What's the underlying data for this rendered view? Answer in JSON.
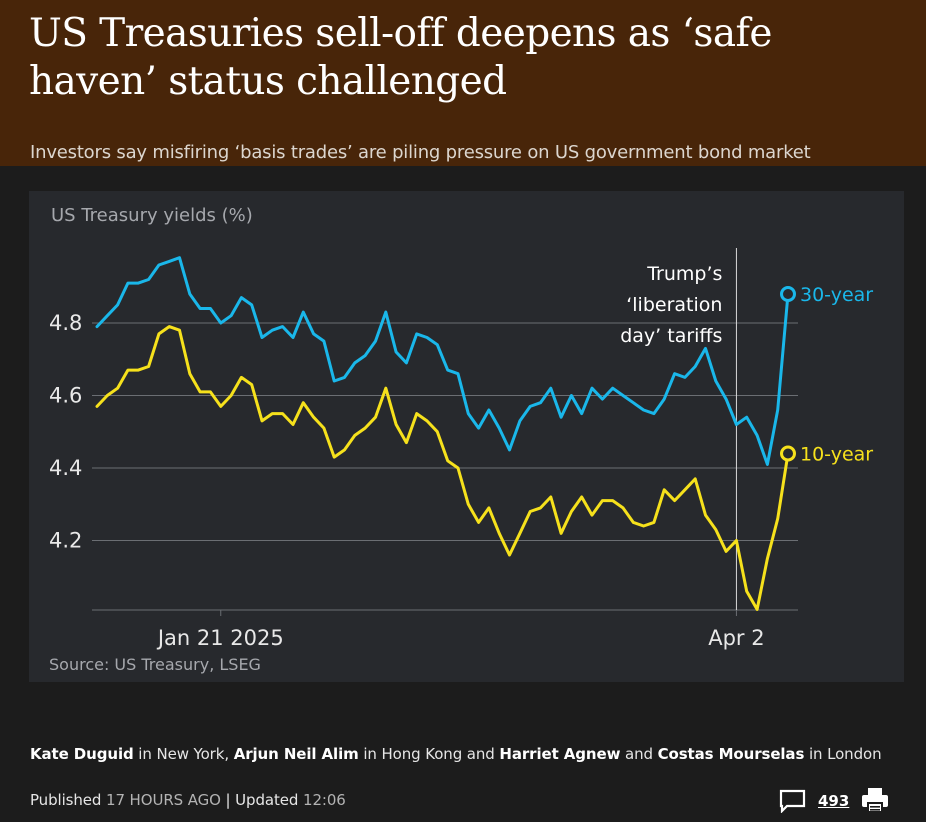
{
  "headline": "US Treasuries sell-off deepens as ‘safe haven’ status challenged",
  "standfirst": "Investors say misfiring ‘basis trades’ are piling pressure on US government bond market",
  "byline": {
    "authors": [
      {
        "name": "Kate Duguid",
        "suffix": " in New York, "
      },
      {
        "name": "Arjun Neil Alim",
        "suffix": " in Hong Kong and "
      },
      {
        "name": "Harriet Agnew",
        "suffix": " and "
      },
      {
        "name": "Costas Mourselas",
        "suffix": " in London"
      }
    ]
  },
  "meta": {
    "published_label": "Published",
    "published_value": "17 HOURS AGO",
    "separator": " | ",
    "updated_label": "Updated",
    "updated_value": "12:06",
    "comment_count": "493",
    "comment_icon": "speech-bubble-icon",
    "print_icon": "printer-icon"
  },
  "colors": {
    "header_bg": "#482509",
    "page_bg": "#1c1c1c",
    "chart_bg": "#27292d",
    "series_30": "#1ab7ea",
    "series_10": "#f6e11c",
    "gridline": "#6b6e73"
  },
  "chart_data": {
    "type": "line",
    "title": "US Treasury yields (%)",
    "source": "Source: US Treasury, LSEG",
    "x_ticks": [
      "Jan 21 2025",
      "Apr 2"
    ],
    "y_ticks": [
      4.2,
      4.4,
      4.6,
      4.8
    ],
    "ylim": [
      4.0,
      5.0
    ],
    "grid": true,
    "annotation": {
      "text": [
        "Trump’s",
        "‘liberation",
        "day’ tariffs"
      ],
      "at": "Apr 2"
    },
    "x": [
      "Jan 2",
      "Jan 3",
      "Jan 6",
      "Jan 7",
      "Jan 8",
      "Jan 9",
      "Jan 10",
      "Jan 13",
      "Jan 14",
      "Jan 15",
      "Jan 16",
      "Jan 17",
      "Jan 21",
      "Jan 22",
      "Jan 23",
      "Jan 24",
      "Jan 27",
      "Jan 28",
      "Jan 29",
      "Jan 30",
      "Jan 31",
      "Feb 3",
      "Feb 4",
      "Feb 5",
      "Feb 6",
      "Feb 7",
      "Feb 10",
      "Feb 11",
      "Feb 12",
      "Feb 13",
      "Feb 14",
      "Feb 18",
      "Feb 19",
      "Feb 20",
      "Feb 21",
      "Feb 24",
      "Feb 25",
      "Feb 26",
      "Feb 27",
      "Feb 28",
      "Mar 3",
      "Mar 4",
      "Mar 5",
      "Mar 6",
      "Mar 7",
      "Mar 10",
      "Mar 11",
      "Mar 12",
      "Mar 13",
      "Mar 14",
      "Mar 17",
      "Mar 18",
      "Mar 19",
      "Mar 20",
      "Mar 21",
      "Mar 24",
      "Mar 25",
      "Mar 26",
      "Mar 27",
      "Mar 28",
      "Mar 31",
      "Apr 1",
      "Apr 2",
      "Apr 3",
      "Apr 4",
      "Apr 7",
      "Apr 8",
      "Apr 9"
    ],
    "series": [
      {
        "name": "30-year",
        "values": [
          4.79,
          4.82,
          4.85,
          4.91,
          4.91,
          4.92,
          4.96,
          4.97,
          4.98,
          4.88,
          4.84,
          4.84,
          4.8,
          4.82,
          4.87,
          4.85,
          4.76,
          4.78,
          4.79,
          4.76,
          4.83,
          4.77,
          4.75,
          4.64,
          4.65,
          4.69,
          4.71,
          4.75,
          4.83,
          4.72,
          4.69,
          4.77,
          4.76,
          4.74,
          4.67,
          4.66,
          4.55,
          4.51,
          4.56,
          4.51,
          4.45,
          4.53,
          4.57,
          4.58,
          4.62,
          4.54,
          4.6,
          4.55,
          4.62,
          4.59,
          4.62,
          4.6,
          4.58,
          4.56,
          4.55,
          4.59,
          4.66,
          4.65,
          4.68,
          4.73,
          4.64,
          4.59,
          4.52,
          4.54,
          4.49,
          4.41,
          4.56,
          4.88
        ]
      },
      {
        "name": "10-year",
        "values": [
          4.57,
          4.6,
          4.62,
          4.67,
          4.67,
          4.68,
          4.77,
          4.79,
          4.78,
          4.66,
          4.61,
          4.61,
          4.57,
          4.6,
          4.65,
          4.63,
          4.53,
          4.55,
          4.55,
          4.52,
          4.58,
          4.54,
          4.51,
          4.43,
          4.45,
          4.49,
          4.51,
          4.54,
          4.62,
          4.52,
          4.47,
          4.55,
          4.53,
          4.5,
          4.42,
          4.4,
          4.3,
          4.25,
          4.29,
          4.22,
          4.16,
          4.22,
          4.28,
          4.29,
          4.32,
          4.22,
          4.28,
          4.32,
          4.27,
          4.31,
          4.31,
          4.29,
          4.25,
          4.24,
          4.25,
          4.34,
          4.31,
          4.34,
          4.37,
          4.27,
          4.23,
          4.17,
          4.2,
          4.06,
          4.01,
          4.15,
          4.26,
          4.44
        ]
      }
    ],
    "labels": {
      "30-year": "30-year",
      "10-year": "10-year"
    }
  }
}
